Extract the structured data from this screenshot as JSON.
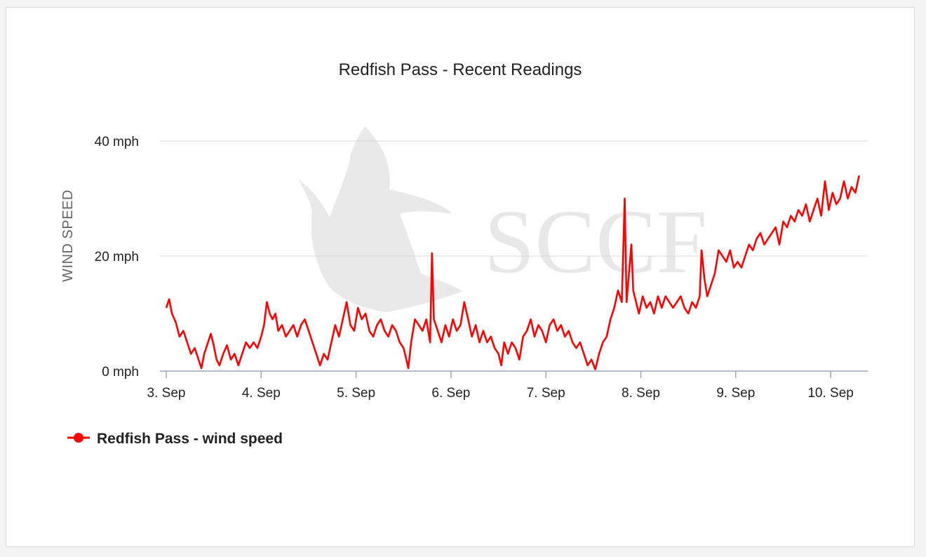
{
  "chart_data": {
    "type": "line",
    "title": "Redfish Pass - Recent Readings",
    "ylabel": "WIND SPEED",
    "xlabel": "",
    "x_ticks": [
      "3. Sep",
      "4. Sep",
      "5. Sep",
      "6. Sep",
      "7. Sep",
      "8. Sep",
      "9. Sep",
      "10. Sep"
    ],
    "y_ticks": [
      "0 mph",
      "20 mph",
      "40 mph"
    ],
    "ylim": [
      0,
      40
    ],
    "xlim": [
      0,
      7.4
    ],
    "grid": true,
    "legend_position": "bottom-left",
    "watermark": "SCCF",
    "series": [
      {
        "name": "Redfish Pass - wind speed",
        "color": "#ff0000",
        "points": [
          [
            0.0,
            11
          ],
          [
            0.03,
            12.5
          ],
          [
            0.06,
            10
          ],
          [
            0.1,
            8.5
          ],
          [
            0.14,
            6
          ],
          [
            0.18,
            7
          ],
          [
            0.22,
            5
          ],
          [
            0.26,
            3
          ],
          [
            0.3,
            4
          ],
          [
            0.34,
            2
          ],
          [
            0.37,
            0.5
          ],
          [
            0.4,
            3
          ],
          [
            0.44,
            5
          ],
          [
            0.47,
            6.5
          ],
          [
            0.5,
            4.5
          ],
          [
            0.53,
            2
          ],
          [
            0.56,
            1
          ],
          [
            0.6,
            3
          ],
          [
            0.64,
            4.5
          ],
          [
            0.68,
            2
          ],
          [
            0.72,
            3
          ],
          [
            0.76,
            1
          ],
          [
            0.8,
            3
          ],
          [
            0.84,
            5
          ],
          [
            0.88,
            4
          ],
          [
            0.92,
            5
          ],
          [
            0.96,
            4
          ],
          [
            1.0,
            6
          ],
          [
            1.03,
            8
          ],
          [
            1.06,
            12
          ],
          [
            1.09,
            10
          ],
          [
            1.12,
            9
          ],
          [
            1.15,
            10
          ],
          [
            1.18,
            7
          ],
          [
            1.22,
            8
          ],
          [
            1.26,
            6
          ],
          [
            1.3,
            7
          ],
          [
            1.34,
            8
          ],
          [
            1.38,
            6
          ],
          [
            1.42,
            8
          ],
          [
            1.46,
            9
          ],
          [
            1.5,
            7
          ],
          [
            1.54,
            5
          ],
          [
            1.58,
            3
          ],
          [
            1.62,
            1
          ],
          [
            1.66,
            3
          ],
          [
            1.7,
            2
          ],
          [
            1.74,
            5
          ],
          [
            1.78,
            8
          ],
          [
            1.82,
            6
          ],
          [
            1.86,
            9
          ],
          [
            1.9,
            12
          ],
          [
            1.94,
            8
          ],
          [
            1.98,
            7
          ],
          [
            2.02,
            11
          ],
          [
            2.06,
            9
          ],
          [
            2.1,
            10
          ],
          [
            2.14,
            7
          ],
          [
            2.18,
            6
          ],
          [
            2.22,
            8
          ],
          [
            2.26,
            9
          ],
          [
            2.3,
            7
          ],
          [
            2.34,
            6
          ],
          [
            2.38,
            8
          ],
          [
            2.42,
            7
          ],
          [
            2.46,
            5
          ],
          [
            2.5,
            4
          ],
          [
            2.53,
            2
          ],
          [
            2.55,
            0.5
          ],
          [
            2.58,
            5
          ],
          [
            2.62,
            9
          ],
          [
            2.66,
            8
          ],
          [
            2.7,
            7
          ],
          [
            2.74,
            9
          ],
          [
            2.78,
            5
          ],
          [
            2.8,
            20.5
          ],
          [
            2.82,
            9
          ],
          [
            2.86,
            7
          ],
          [
            2.9,
            5
          ],
          [
            2.94,
            8
          ],
          [
            2.98,
            6
          ],
          [
            3.02,
            9
          ],
          [
            3.06,
            7
          ],
          [
            3.1,
            8
          ],
          [
            3.14,
            12
          ],
          [
            3.18,
            9
          ],
          [
            3.22,
            6
          ],
          [
            3.26,
            8
          ],
          [
            3.3,
            5
          ],
          [
            3.34,
            7
          ],
          [
            3.38,
            5
          ],
          [
            3.42,
            6
          ],
          [
            3.46,
            4
          ],
          [
            3.5,
            3
          ],
          [
            3.53,
            1
          ],
          [
            3.56,
            5
          ],
          [
            3.6,
            3
          ],
          [
            3.64,
            5
          ],
          [
            3.68,
            4
          ],
          [
            3.72,
            2
          ],
          [
            3.76,
            6
          ],
          [
            3.8,
            7
          ],
          [
            3.84,
            9
          ],
          [
            3.88,
            6
          ],
          [
            3.92,
            8
          ],
          [
            3.96,
            7
          ],
          [
            4.0,
            5
          ],
          [
            4.04,
            8
          ],
          [
            4.08,
            9
          ],
          [
            4.12,
            7
          ],
          [
            4.16,
            8
          ],
          [
            4.2,
            6
          ],
          [
            4.24,
            7
          ],
          [
            4.28,
            5
          ],
          [
            4.32,
            4
          ],
          [
            4.36,
            5
          ],
          [
            4.4,
            3
          ],
          [
            4.44,
            1
          ],
          [
            4.48,
            2
          ],
          [
            4.52,
            0.3
          ],
          [
            4.56,
            3
          ],
          [
            4.6,
            5
          ],
          [
            4.64,
            6
          ],
          [
            4.68,
            9
          ],
          [
            4.72,
            11
          ],
          [
            4.76,
            14
          ],
          [
            4.8,
            12
          ],
          [
            4.83,
            30
          ],
          [
            4.85,
            12
          ],
          [
            4.87,
            16
          ],
          [
            4.9,
            22
          ],
          [
            4.92,
            14
          ],
          [
            4.95,
            12
          ],
          [
            4.98,
            10
          ],
          [
            5.02,
            13
          ],
          [
            5.06,
            11
          ],
          [
            5.1,
            12
          ],
          [
            5.14,
            10
          ],
          [
            5.18,
            13
          ],
          [
            5.22,
            11
          ],
          [
            5.26,
            13
          ],
          [
            5.3,
            12
          ],
          [
            5.34,
            11
          ],
          [
            5.38,
            12
          ],
          [
            5.42,
            13
          ],
          [
            5.46,
            11
          ],
          [
            5.5,
            10
          ],
          [
            5.54,
            12
          ],
          [
            5.58,
            11
          ],
          [
            5.62,
            13
          ],
          [
            5.64,
            21
          ],
          [
            5.67,
            16
          ],
          [
            5.7,
            13
          ],
          [
            5.74,
            15
          ],
          [
            5.78,
            17
          ],
          [
            5.82,
            21
          ],
          [
            5.86,
            20
          ],
          [
            5.9,
            19
          ],
          [
            5.94,
            21
          ],
          [
            5.98,
            18
          ],
          [
            6.02,
            19
          ],
          [
            6.06,
            18
          ],
          [
            6.1,
            20
          ],
          [
            6.14,
            22
          ],
          [
            6.18,
            21
          ],
          [
            6.22,
            23
          ],
          [
            6.26,
            24
          ],
          [
            6.3,
            22
          ],
          [
            6.34,
            23
          ],
          [
            6.38,
            24
          ],
          [
            6.42,
            25
          ],
          [
            6.46,
            22
          ],
          [
            6.5,
            26
          ],
          [
            6.54,
            25
          ],
          [
            6.58,
            27
          ],
          [
            6.62,
            26
          ],
          [
            6.66,
            28
          ],
          [
            6.7,
            27
          ],
          [
            6.74,
            29
          ],
          [
            6.78,
            26
          ],
          [
            6.82,
            28
          ],
          [
            6.86,
            30
          ],
          [
            6.9,
            27
          ],
          [
            6.94,
            33
          ],
          [
            6.98,
            28
          ],
          [
            7.02,
            31
          ],
          [
            7.06,
            29
          ],
          [
            7.1,
            30
          ],
          [
            7.14,
            33
          ],
          [
            7.18,
            30
          ],
          [
            7.22,
            32
          ],
          [
            7.26,
            31
          ],
          [
            7.3,
            34
          ]
        ]
      }
    ]
  }
}
